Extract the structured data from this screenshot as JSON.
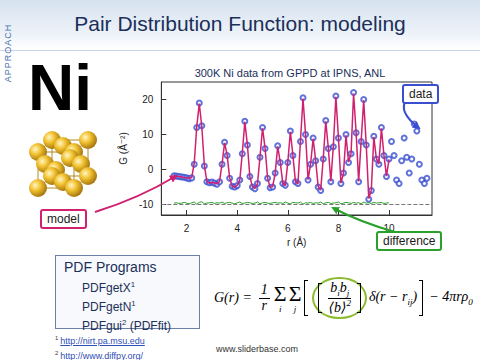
{
  "slide": {
    "title": "Pair Distribution Function: modeling",
    "side_label": "APPROACH",
    "element": "Ni",
    "programs": {
      "heading": "PDF Programs",
      "items": [
        {
          "name": "PDFgetX",
          "ref": "1"
        },
        {
          "name": "PDFgetN",
          "ref": "1"
        },
        {
          "name": "PDFgui",
          "ref": "2",
          "note": "(PDFfit)"
        }
      ]
    },
    "references": [
      {
        "mark": "1",
        "url": "http://nirt.pa.msu.edu"
      },
      {
        "mark": "2",
        "url": "http://www.diffpy.org/"
      }
    ],
    "source": "www.sliderbase.com",
    "formula": {
      "lhs": "G(r) =",
      "prefactor": {
        "num": "1",
        "den": "r"
      },
      "sums": [
        {
          "symbol": "Σ",
          "index": "i"
        },
        {
          "symbol": "Σ",
          "index": "j"
        }
      ],
      "weight": {
        "num": [
          {
            "base": "b",
            "sub": "i"
          },
          {
            "base": "b",
            "sub": "j"
          }
        ],
        "den": {
          "base": "⟨b⟩",
          "sup": "2"
        }
      },
      "delta": {
        "text": "δ(r − r",
        "sub": "ij",
        "close": ")"
      },
      "tail": {
        "text": "− 4πrρ",
        "sub": "0"
      }
    }
  },
  "chart_data": {
    "type": "line",
    "title": "300K Ni data from GPPD at IPNS, ANL",
    "x_label": "r (Å)",
    "y_label": "G (Å⁻²)",
    "xlim": [
      1,
      11.7
    ],
    "ylim": [
      -13,
      25
    ],
    "xticks": [
      2,
      4,
      6,
      8,
      10
    ],
    "yticks": [
      -10,
      0,
      10,
      20
    ],
    "grid": false,
    "x": [
      1.5,
      1.6,
      1.7,
      1.8,
      1.9,
      2.0,
      2.1,
      2.2,
      2.3,
      2.4,
      2.5,
      2.6,
      2.7,
      2.8,
      2.9,
      3.0,
      3.1,
      3.2,
      3.3,
      3.4,
      3.5,
      3.6,
      3.7,
      3.8,
      3.9,
      4.0,
      4.1,
      4.2,
      4.3,
      4.4,
      4.5,
      4.6,
      4.7,
      4.8,
      4.9,
      5.0,
      5.1,
      5.2,
      5.3,
      5.4,
      5.5,
      5.6,
      5.7,
      5.8,
      5.9,
      6.0,
      6.1,
      6.2,
      6.3,
      6.4,
      6.5,
      6.6,
      6.7,
      6.8,
      6.9,
      7.0,
      7.1,
      7.2,
      7.3,
      7.4,
      7.5,
      7.6,
      7.7,
      7.8,
      7.9,
      8.0,
      8.1,
      8.2,
      8.3,
      8.4,
      8.5,
      8.6,
      8.7,
      8.8,
      8.9,
      9.0,
      9.1,
      9.2,
      9.3,
      9.4,
      9.5,
      9.6,
      9.7,
      9.8,
      9.9,
      10.0,
      10.1,
      10.2,
      10.3,
      10.4,
      10.5,
      10.6,
      10.7,
      10.8,
      10.9,
      11.0,
      11.1,
      11.2,
      11.3,
      11.4,
      11.5
    ],
    "series": [
      {
        "name": "data",
        "type": "scatter",
        "marker": "open_circle",
        "color": "#3a4fd0",
        "values": [
          -1.8,
          -1.9,
          -2.0,
          -2.1,
          -2.2,
          -2.4,
          -2.6,
          -2.4,
          1.5,
          12.0,
          19.0,
          12.5,
          1.0,
          -3.5,
          -3.8,
          -3.6,
          -3.9,
          -4.2,
          -3.5,
          1.5,
          7.8,
          4.0,
          -2.5,
          -4.8,
          -5.0,
          -4.6,
          -3.0,
          4.5,
          13.8,
          7.0,
          -2.0,
          -5.0,
          -5.5,
          -4.0,
          3.5,
          12.0,
          6.0,
          -2.5,
          -5.2,
          -5.0,
          -1.0,
          6.8,
          2.0,
          -4.0,
          -4.5,
          2.0,
          11.0,
          4.0,
          -3.5,
          -4.0,
          8.0,
          20.5,
          10.0,
          -3.0,
          1.5,
          9.0,
          2.5,
          -5.0,
          -6.0,
          3.0,
          14.0,
          6.0,
          -3.5,
          6.5,
          21.0,
          9.0,
          -4.0,
          -1.0,
          10.0,
          2.0,
          4.5,
          22.0,
          10.5,
          -3.5,
          8.0,
          20.0,
          7.0,
          -8.5,
          -6.0,
          9.5,
          3.0,
          1.5,
          12.0,
          4.0,
          -2.0,
          3.0,
          8.0,
          4.0,
          -3.0,
          -4.0,
          2.5,
          9.0,
          3.5,
          -1.0,
          3.0,
          13.0,
          11.0,
          1.5,
          -3.0,
          -4.0,
          -2.5
        ]
      },
      {
        "name": "model",
        "type": "line",
        "marker": "none",
        "line_style": "solid",
        "color": "#d0206f",
        "values": [
          -1.7,
          -1.9,
          -2.1,
          -2.1,
          -2.3,
          -2.4,
          -2.5,
          -2.3,
          1.8,
          12.3,
          18.8,
          12.2,
          1.2,
          -3.4,
          -3.9,
          -3.7,
          -3.8,
          -4.1,
          -3.4,
          1.6,
          7.6,
          4.2,
          -2.4,
          -4.7,
          -5.1,
          -4.5,
          -3.1,
          4.7,
          13.6,
          7.2,
          -2.1,
          -4.9,
          -5.4,
          -4.1,
          3.6,
          11.8,
          6.2,
          -2.4,
          -5.1,
          -4.9,
          -1.1,
          6.6,
          2.1,
          -3.9,
          -4.6,
          2.1,
          10.8,
          4.1,
          -3.4,
          -4.1,
          8.2,
          20.3,
          10.1,
          -2.9,
          1.6,
          8.8,
          2.6,
          -4.9,
          -5.9,
          3.1,
          13.8,
          6.2,
          -3.4,
          6.7,
          20.8,
          9.2,
          -3.9,
          -1.1,
          9.8,
          2.1,
          4.6,
          21.7,
          10.6,
          -3.4,
          8.2,
          19.8,
          7.1,
          -8.3,
          -5.9,
          9.3,
          3.1,
          1.6,
          11.8,
          4.1,
          -1.9,
          2.9,
          null,
          null,
          null,
          null,
          null,
          null,
          null,
          null,
          null,
          null,
          null,
          null,
          null,
          null,
          null
        ]
      },
      {
        "name": "difference",
        "type": "line",
        "marker": "none",
        "line_style": "solid",
        "color": "#2ca02c",
        "baseline": -10,
        "values": [
          -9.6,
          -9.5,
          -9.7,
          -9.6,
          -9.4,
          -9.6,
          -9.8,
          -9.5,
          -9.3,
          -9.9,
          -9.4,
          -9.2,
          -9.8,
          -9.6,
          -9.5,
          -9.4,
          -9.7,
          -9.5,
          -9.6,
          -9.3,
          -9.7,
          -9.5,
          -9.4,
          -9.6,
          -9.8,
          -9.5,
          -9.3,
          -9.7,
          -9.6,
          -9.4,
          -9.5,
          -9.7,
          -9.6,
          -9.3,
          -9.8,
          -9.5,
          -9.4,
          -9.6,
          -9.7,
          -9.5,
          -9.4,
          -9.6,
          -9.5,
          -9.7,
          -9.3,
          -9.6,
          -9.8,
          -9.4,
          -9.5,
          -9.6,
          -9.3,
          -9.9,
          -9.5,
          -9.6,
          -9.4,
          -9.7,
          -9.5,
          -9.6,
          -9.3,
          -9.8,
          -9.5,
          -9.4,
          -9.7,
          -9.6,
          -9.5,
          -9.3,
          -9.8,
          -9.6,
          -9.4,
          -9.5,
          -9.7,
          -9.4,
          -9.6,
          -9.5,
          -9.8,
          -9.3,
          -9.6,
          -9.5,
          -9.7,
          -9.4,
          -9.6,
          -9.5,
          -9.4,
          -9.7,
          -9.6,
          -9.5,
          null,
          null,
          null,
          null,
          null,
          null,
          null,
          null,
          null,
          null,
          null,
          null,
          null,
          null,
          null
        ]
      }
    ]
  }
}
